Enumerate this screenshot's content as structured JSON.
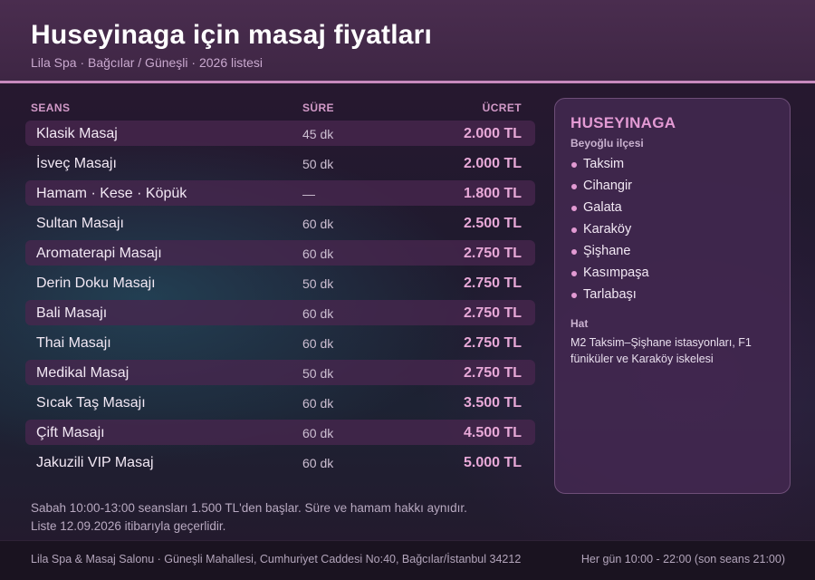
{
  "header": {
    "title": "Huseyinaga için masaj fiyatları",
    "subtitle": "Lila Spa · Bağcılar / Güneşli · 2026 listesi"
  },
  "table": {
    "columns": {
      "name": "SEANS",
      "duration": "SÜRE",
      "price": "ÜCRET"
    },
    "rows": [
      {
        "name": "Klasik Masaj",
        "duration": "45 dk",
        "price": "2.000 TL"
      },
      {
        "name": "İsveç Masajı",
        "duration": "50 dk",
        "price": "2.000 TL"
      },
      {
        "name": "Hamam · Kese · Köpük",
        "duration": "—",
        "price": "1.800 TL"
      },
      {
        "name": "Sultan Masajı",
        "duration": "60 dk",
        "price": "2.500 TL"
      },
      {
        "name": "Aromaterapi Masajı",
        "duration": "60 dk",
        "price": "2.750 TL"
      },
      {
        "name": "Derin Doku Masajı",
        "duration": "50 dk",
        "price": "2.750 TL"
      },
      {
        "name": "Bali Masajı",
        "duration": "60 dk",
        "price": "2.750 TL"
      },
      {
        "name": "Thai Masajı",
        "duration": "60 dk",
        "price": "2.750 TL"
      },
      {
        "name": "Medikal Masaj",
        "duration": "50 dk",
        "price": "2.750 TL"
      },
      {
        "name": "Sıcak Taş Masajı",
        "duration": "60 dk",
        "price": "3.500 TL"
      },
      {
        "name": "Çift Masajı",
        "duration": "60 dk",
        "price": "4.500 TL"
      },
      {
        "name": "Jakuzili VIP Masaj",
        "duration": "60 dk",
        "price": "5.000 TL"
      }
    ]
  },
  "notes": {
    "line1": "Sabah 10:00-13:00 seansları 1.500 TL'den başlar. Süre ve hamam hakkı aynıdır.",
    "line2": "Liste 12.09.2026 itibarıyla geçerlidir."
  },
  "sidebar": {
    "title": "HUSEYINAGA",
    "district": "Beyoğlu ilçesi",
    "neighborhoods": [
      "Taksim",
      "Cihangir",
      "Galata",
      "Karaköy",
      "Şişhane",
      "Kasımpaşa",
      "Tarlabaşı"
    ],
    "transit_label": "Hat",
    "transit_text": "M2 Taksim–Şişhane istasyonları, F1 füniküler ve Karaköy iskelesi"
  },
  "footer": {
    "address": "Lila Spa & Masaj Salonu · Güneşli Mahallesi, Cumhuriyet Caddesi No:40, Bağcılar/İstanbul 34212",
    "hours": "Her gün 10:00 - 22:00 (son seans 21:00)"
  },
  "colors": {
    "accent": "#c789be",
    "price": "#e8a9d8",
    "sidebar_title": "#e39ad4"
  }
}
